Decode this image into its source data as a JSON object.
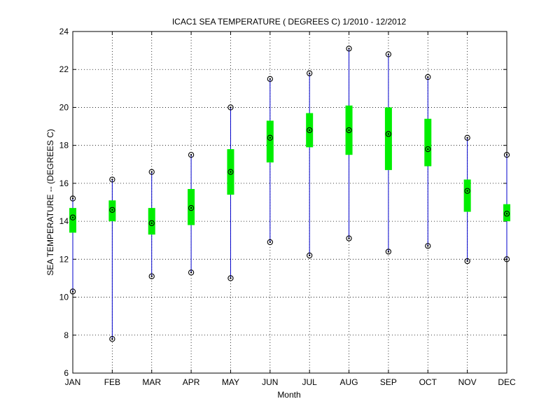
{
  "chart_data": {
    "type": "box",
    "title": "ICAC1  SEA TEMPERATURE ( DEGREES C) 1/2010 - 12/2012",
    "xlabel": "Month",
    "ylabel": "SEA TEMPERATURE -- (DEGREES C)",
    "categories": [
      "JAN",
      "FEB",
      "MAR",
      "APR",
      "MAY",
      "JUN",
      "JUL",
      "AUG",
      "SEP",
      "OCT",
      "NOV",
      "DEC"
    ],
    "ylim": [
      6,
      24
    ],
    "yticks": [
      6,
      8,
      10,
      12,
      14,
      16,
      18,
      20,
      22,
      24
    ],
    "grid": true,
    "series": [
      {
        "min": 10.3,
        "q1": 13.4,
        "median": 14.2,
        "q3": 14.7,
        "max": 15.2
      },
      {
        "min": 7.8,
        "q1": 14.0,
        "median": 14.6,
        "q3": 15.1,
        "max": 16.2
      },
      {
        "min": 11.1,
        "q1": 13.3,
        "median": 13.9,
        "q3": 14.7,
        "max": 16.6
      },
      {
        "min": 11.3,
        "q1": 13.8,
        "median": 14.7,
        "q3": 15.7,
        "max": 17.5
      },
      {
        "min": 11.0,
        "q1": 15.4,
        "median": 16.6,
        "q3": 17.8,
        "max": 20.0
      },
      {
        "min": 12.9,
        "q1": 17.1,
        "median": 18.4,
        "q3": 19.3,
        "max": 21.5
      },
      {
        "min": 12.2,
        "q1": 17.9,
        "median": 18.8,
        "q3": 19.7,
        "max": 21.8
      },
      {
        "min": 13.1,
        "q1": 17.5,
        "median": 18.8,
        "q3": 20.1,
        "max": 23.1
      },
      {
        "min": 12.4,
        "q1": 16.7,
        "median": 18.6,
        "q3": 20.0,
        "max": 22.8
      },
      {
        "min": 12.7,
        "q1": 16.9,
        "median": 17.8,
        "q3": 19.4,
        "max": 21.6
      },
      {
        "min": 11.9,
        "q1": 14.5,
        "median": 15.6,
        "q3": 16.2,
        "max": 18.4
      },
      {
        "min": 12.0,
        "q1": 14.0,
        "median": 14.4,
        "q3": 14.9,
        "max": 17.5
      }
    ],
    "colors": {
      "whisker": "#0000cc",
      "box": "#00ee00",
      "marker": "#000000"
    }
  }
}
